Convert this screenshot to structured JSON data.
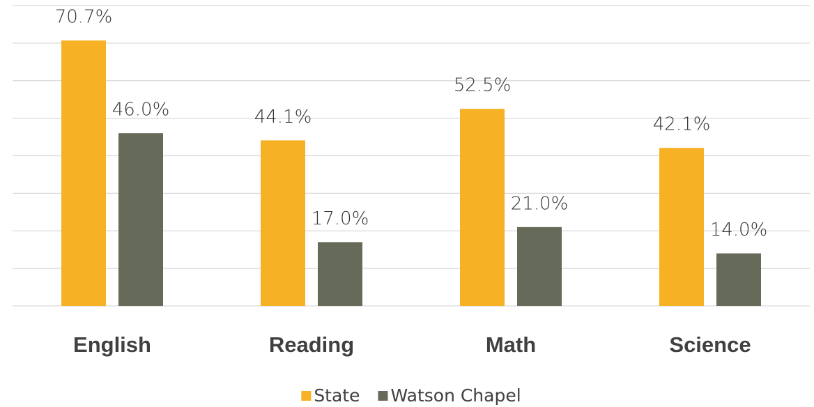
{
  "chart_data": {
    "type": "bar",
    "categories": [
      "English",
      "Reading",
      "Math",
      "Science"
    ],
    "series": [
      {
        "name": "State",
        "color": "#f7b125",
        "values": [
          70.7,
          44.1,
          52.5,
          42.1
        ],
        "value_labels": [
          "70.7%",
          "44.1%",
          "52.5%",
          "42.1%"
        ]
      },
      {
        "name": "Watson Chapel",
        "color": "#666a58",
        "values": [
          46.0,
          17.0,
          21.0,
          14.0
        ],
        "value_labels": [
          "46.0%",
          "17.0%",
          "21.0%",
          "14.0%"
        ]
      }
    ],
    "ylim": [
      0,
      80
    ],
    "yticks": [
      0,
      10,
      20,
      30,
      40,
      50,
      60,
      70,
      80
    ],
    "grid": true,
    "legend": "bottom"
  }
}
